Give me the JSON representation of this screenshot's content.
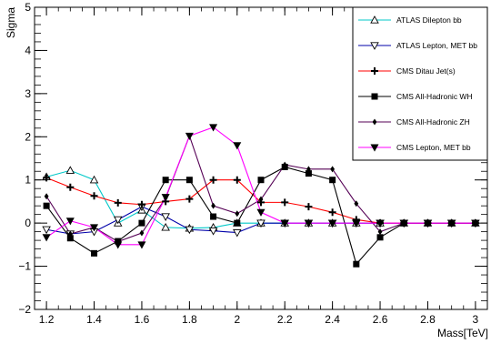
{
  "chart_data": {
    "type": "scatter",
    "xlabel": "Mass[TeV]",
    "ylabel": "Sigma",
    "xlim": [
      1.15,
      3.05
    ],
    "ylim": [
      -2,
      5
    ],
    "x_ticks": [
      "1.2",
      "1.4",
      "1.6",
      "1.8",
      "2",
      "2.2",
      "2.4",
      "2.6",
      "2.8",
      "3"
    ],
    "y_ticks": [
      "−2",
      "−1",
      "0",
      "1",
      "2",
      "3",
      "4",
      "5"
    ],
    "legend_position": "top-right",
    "series": [
      {
        "name": "ATLAS Dilepton bb",
        "marker": "triangle-up-open",
        "line_color": "#00c8c8",
        "points": [
          [
            1.2,
            1.07
          ],
          [
            1.3,
            1.22
          ],
          [
            1.4,
            1.0
          ],
          [
            1.5,
            0.0
          ],
          [
            1.6,
            0.3
          ],
          [
            1.7,
            -0.1
          ],
          [
            1.8,
            -0.12
          ],
          [
            1.9,
            -0.1
          ],
          [
            2.0,
            0.0
          ],
          [
            2.1,
            0.0
          ],
          [
            2.2,
            0.0
          ],
          [
            2.3,
            0.0
          ],
          [
            2.4,
            0.0
          ],
          [
            2.5,
            0.0
          ],
          [
            2.6,
            0.0
          ],
          [
            2.7,
            0.0
          ],
          [
            2.8,
            0.0
          ],
          [
            2.9,
            0.0
          ],
          [
            3.0,
            0.0
          ]
        ]
      },
      {
        "name": "ATLAS Lepton, MET bb",
        "marker": "triangle-down-open",
        "line_color": "#0000aa",
        "points": [
          [
            1.2,
            -0.15
          ],
          [
            1.3,
            -0.25
          ],
          [
            1.4,
            -0.2
          ],
          [
            1.5,
            0.08
          ],
          [
            1.6,
            0.38
          ],
          [
            1.7,
            0.15
          ],
          [
            1.8,
            -0.15
          ],
          [
            1.9,
            -0.18
          ],
          [
            2.0,
            -0.22
          ],
          [
            2.1,
            0.0
          ],
          [
            2.2,
            0.0
          ],
          [
            2.3,
            0.0
          ],
          [
            2.4,
            0.0
          ],
          [
            2.5,
            0.0
          ],
          [
            2.6,
            0.0
          ],
          [
            2.7,
            0.0
          ],
          [
            2.8,
            0.0
          ],
          [
            2.9,
            0.0
          ],
          [
            3.0,
            0.0
          ]
        ]
      },
      {
        "name": "CMS Ditau Jet(s)",
        "marker": "plus",
        "line_color": "#ff0000",
        "points": [
          [
            1.2,
            1.05
          ],
          [
            1.3,
            0.83
          ],
          [
            1.4,
            0.63
          ],
          [
            1.5,
            0.47
          ],
          [
            1.6,
            0.43
          ],
          [
            1.7,
            0.5
          ],
          [
            1.8,
            0.56
          ],
          [
            1.9,
            1.0
          ],
          [
            2.0,
            1.0
          ],
          [
            2.1,
            0.48
          ],
          [
            2.2,
            0.48
          ],
          [
            2.3,
            0.38
          ],
          [
            2.4,
            0.25
          ],
          [
            2.5,
            0.08
          ],
          [
            2.6,
            0.0
          ],
          [
            2.7,
            0.0
          ],
          [
            2.8,
            0.0
          ],
          [
            2.9,
            0.0
          ],
          [
            3.0,
            0.0
          ]
        ]
      },
      {
        "name": "CMS All-Hadronic WH",
        "marker": "square",
        "line_color": "#000000",
        "points": [
          [
            1.2,
            0.4
          ],
          [
            1.3,
            -0.35
          ],
          [
            1.4,
            -0.7
          ],
          [
            1.5,
            -0.42
          ],
          [
            1.6,
            0.0
          ],
          [
            1.7,
            1.0
          ],
          [
            1.8,
            1.0
          ],
          [
            1.9,
            0.15
          ],
          [
            2.0,
            0.0
          ],
          [
            2.1,
            1.0
          ],
          [
            2.2,
            1.3
          ],
          [
            2.3,
            1.15
          ],
          [
            2.4,
            1.0
          ],
          [
            2.5,
            -0.95
          ],
          [
            2.6,
            -0.33
          ],
          [
            2.7,
            0.0
          ],
          [
            2.8,
            0.0
          ],
          [
            2.9,
            0.0
          ],
          [
            3.0,
            0.0
          ]
        ]
      },
      {
        "name": "CMS All-Hadronic ZH",
        "marker": "diamond",
        "line_color": "#550055",
        "points": [
          [
            1.2,
            0.62
          ],
          [
            1.3,
            -0.25
          ],
          [
            1.4,
            -0.1
          ],
          [
            1.5,
            -0.43
          ],
          [
            1.6,
            -0.23
          ],
          [
            1.7,
            0.58
          ],
          [
            1.8,
            2.02
          ],
          [
            1.9,
            0.4
          ],
          [
            2.0,
            0.22
          ],
          [
            2.1,
            0.55
          ],
          [
            2.2,
            1.35
          ],
          [
            2.3,
            1.25
          ],
          [
            2.4,
            1.25
          ],
          [
            2.5,
            0.45
          ],
          [
            2.6,
            -0.2
          ],
          [
            2.7,
            0.0
          ],
          [
            2.8,
            0.0
          ],
          [
            2.9,
            0.0
          ],
          [
            3.0,
            0.0
          ]
        ]
      },
      {
        "name": "CMS Lepton, MET bb",
        "marker": "triangle-down",
        "line_color": "#ff00ff",
        "points": [
          [
            1.2,
            -0.33
          ],
          [
            1.3,
            0.05
          ],
          [
            1.4,
            -0.1
          ],
          [
            1.5,
            -0.5
          ],
          [
            1.6,
            -0.5
          ],
          [
            1.7,
            0.6
          ],
          [
            1.8,
            2.02
          ],
          [
            1.9,
            2.22
          ],
          [
            2.0,
            1.8
          ],
          [
            2.1,
            0.25
          ],
          [
            2.2,
            0.0
          ],
          [
            2.3,
            0.0
          ],
          [
            2.4,
            0.0
          ],
          [
            2.5,
            0.0
          ],
          [
            2.6,
            0.0
          ],
          [
            2.7,
            0.0
          ],
          [
            2.8,
            0.0
          ],
          [
            2.9,
            0.0
          ],
          [
            3.0,
            0.0
          ]
        ]
      }
    ]
  }
}
